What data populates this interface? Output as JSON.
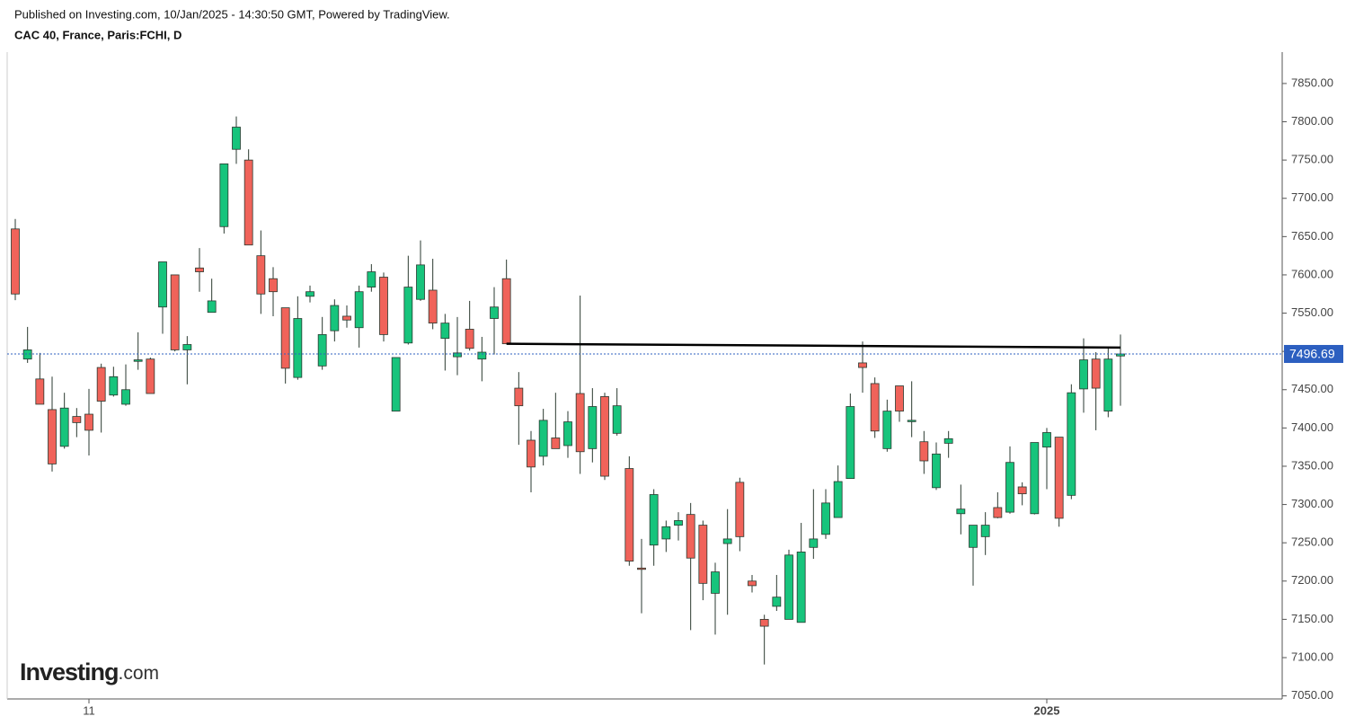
{
  "chart_data": {
    "type": "candlestick",
    "published": "Published on Investing.com, 10/Jan/2025 - 14:30:50 GMT, Powered by TradingView.",
    "title": "CAC 40, France, Paris:FCHI, D",
    "watermark": [
      "Investing",
      ".com"
    ],
    "categories": [
      null,
      null,
      null,
      null,
      null,
      null,
      "11",
      null,
      null,
      null,
      null,
      null,
      null,
      null,
      null,
      null,
      null,
      null,
      null,
      null,
      null,
      null,
      null,
      null,
      null,
      null,
      null,
      null,
      null,
      null,
      null,
      null,
      null,
      null,
      null,
      null,
      null,
      null,
      null,
      null,
      null,
      null,
      null,
      null,
      null,
      null,
      null,
      null,
      null,
      null,
      null,
      null,
      null,
      null,
      null,
      null,
      null,
      null,
      null,
      null,
      null,
      null,
      null,
      null,
      null,
      null,
      null,
      null,
      null,
      null,
      null,
      null,
      null,
      null,
      null,
      null,
      null,
      null,
      null,
      null,
      null,
      null,
      null,
      null,
      "2025",
      null,
      null,
      null,
      null,
      null,
      null
    ],
    "open": [
      7660,
      7490,
      7464,
      7424,
      7376,
      7415,
      7418,
      7479,
      7443,
      7431,
      7487,
      7490,
      7558,
      7600,
      7502,
      7609,
      7551,
      7663,
      7764,
      7750,
      7625,
      7595,
      7557,
      7466,
      7572,
      7481,
      7527,
      7546,
      7531,
      7584,
      7597,
      7422,
      7511,
      7568,
      7580,
      7517,
      7493,
      7529,
      7490,
      7543,
      7595,
      7452,
      7384,
      7363,
      7387,
      7377,
      7445,
      7373,
      7441,
      7393,
      7347,
      7217,
      7247,
      7255,
      7273,
      7287,
      7273,
      7184,
      7249,
      7329,
      7200,
      7150,
      7167,
      7150,
      7146,
      7244,
      7261,
      7283,
      7334,
      7485,
      7458,
      7373,
      7455,
      7409,
      7382,
      7322,
      7380,
      7288,
      7244,
      7258,
      7296,
      7290,
      7323,
      7288,
      7375,
      7388,
      7312,
      7451,
      7490,
      7422,
      7494
    ],
    "high": [
      7673,
      7532,
      7498,
      7467,
      7446,
      7426,
      7451,
      7484,
      7480,
      7483,
      7525,
      7492,
      7617,
      7600,
      7520,
      7635,
      7595,
      7745,
      7807,
      7764,
      7658,
      7610,
      7557,
      7572,
      7586,
      7545,
      7568,
      7560,
      7586,
      7614,
      7603,
      7492,
      7625,
      7645,
      7621,
      7549,
      7545,
      7566,
      7519,
      7584,
      7620,
      7473,
      7396,
      7425,
      7446,
      7422,
      7573,
      7452,
      7446,
      7452,
      7363,
      7255,
      7320,
      7279,
      7290,
      7302,
      7279,
      7224,
      7294,
      7335,
      7208,
      7156,
      7208,
      7241,
      7276,
      7320,
      7320,
      7351,
      7445,
      7513,
      7466,
      7437,
      7455,
      7461,
      7396,
      7381,
      7396,
      7326,
      7273,
      7290,
      7316,
      7376,
      7329,
      7381,
      7400,
      7388,
      7457,
      7517,
      7499,
      7504,
      7522
    ],
    "low": [
      7567,
      7485,
      7431,
      7343,
      7373,
      7388,
      7364,
      7394,
      7441,
      7429,
      7476,
      7445,
      7523,
      7500,
      7457,
      7578,
      7551,
      7654,
      7745,
      7639,
      7549,
      7546,
      7458,
      7463,
      7564,
      7476,
      7513,
      7531,
      7505,
      7578,
      7513,
      7422,
      7509,
      7566,
      7529,
      7475,
      7469,
      7501,
      7461,
      7496,
      7510,
      7378,
      7316,
      7351,
      7373,
      7361,
      7340,
      7355,
      7332,
      7390,
      7220,
      7158,
      7220,
      7238,
      7253,
      7136,
      7175,
      7130,
      7156,
      7239,
      7185,
      7091,
      7161,
      7150,
      7146,
      7229,
      7255,
      7283,
      7334,
      7446,
      7387,
      7369,
      7408,
      7388,
      7340,
      7319,
      7361,
      7261,
      7194,
      7234,
      7282,
      7288,
      7299,
      7287,
      7320,
      7271,
      7307,
      7420,
      7397,
      7414,
      7429
    ],
    "close": [
      7575,
      7502,
      7431,
      7353,
      7426,
      7407,
      7397,
      7435,
      7467,
      7450,
      7489,
      7445,
      7617,
      7502,
      7509,
      7604,
      7566,
      7745,
      7793,
      7639,
      7575,
      7578,
      7478,
      7543,
      7578,
      7522,
      7560,
      7541,
      7578,
      7604,
      7522,
      7492,
      7584,
      7613,
      7537,
      7537,
      7498,
      7504,
      7499,
      7558,
      7510,
      7429,
      7349,
      7410,
      7373,
      7408,
      7369,
      7428,
      7337,
      7429,
      7226,
      7216,
      7313,
      7271,
      7279,
      7230,
      7197,
      7212,
      7255,
      7258,
      7194,
      7141,
      7179,
      7234,
      7238,
      7255,
      7302,
      7330,
      7428,
      7479,
      7396,
      7422,
      7422,
      7410,
      7357,
      7366,
      7386,
      7294,
      7273,
      7273,
      7283,
      7355,
      7314,
      7381,
      7394,
      7282,
      7446,
      7489,
      7452,
      7490,
      7496.69
    ],
    "up_color": "#17c47c",
    "down_color": "#f0635a",
    "wick_color": "#2a3a30",
    "last_price_color": "#2c5fc0",
    "trendline": {
      "start": {
        "index": 40,
        "value": 7510
      },
      "end": {
        "index": 90,
        "value": 7505
      },
      "color": "#000000"
    },
    "ylim": [
      7046,
      7891
    ],
    "yticks": [
      {
        "value": 7050,
        "label": "7050.00"
      },
      {
        "value": 7100,
        "label": "7100.00"
      },
      {
        "value": 7150,
        "label": "7150.00"
      },
      {
        "value": 7200,
        "label": "7200.00"
      },
      {
        "value": 7250,
        "label": "7250.00"
      },
      {
        "value": 7300,
        "label": "7300.00"
      },
      {
        "value": 7350,
        "label": "7350.00"
      },
      {
        "value": 7400,
        "label": "7400.00"
      },
      {
        "value": 7450,
        "label": "7450.00"
      },
      {
        "value": 7500,
        "label": "7500.00"
      },
      {
        "value": 7550,
        "label": "7550.00"
      },
      {
        "value": 7600,
        "label": "7600.00"
      },
      {
        "value": 7650,
        "label": "7650.00"
      },
      {
        "value": 7700,
        "label": "7700.00"
      },
      {
        "value": 7750,
        "label": "7750.00"
      },
      {
        "value": 7800,
        "label": "7800.00"
      },
      {
        "value": 7850,
        "label": "7850.00"
      }
    ]
  }
}
